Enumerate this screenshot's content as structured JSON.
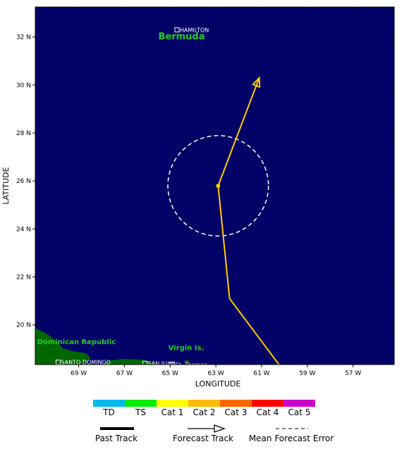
{
  "axes": {
    "xlabel": "LONGITUDE",
    "ylabel": "LATITUDE",
    "lon_range": [
      -70.9,
      -55.2
    ],
    "lat_range": [
      18.35,
      33.25
    ],
    "lon_ticks": [
      {
        "value": -69,
        "label": "69 W"
      },
      {
        "value": -67,
        "label": "67 W"
      },
      {
        "value": -65,
        "label": "65 W"
      },
      {
        "value": -63,
        "label": "63 W"
      },
      {
        "value": -61,
        "label": "61 W"
      },
      {
        "value": -59,
        "label": "59 W"
      },
      {
        "value": -57,
        "label": "57 W"
      }
    ],
    "lat_ticks": [
      {
        "value": 32,
        "label": "32 N"
      },
      {
        "value": 30,
        "label": "30 N"
      },
      {
        "value": 28,
        "label": "28 N"
      },
      {
        "value": 26,
        "label": "26 N"
      },
      {
        "value": 24,
        "label": "24 N"
      },
      {
        "value": 22,
        "label": "22 N"
      },
      {
        "value": 20,
        "label": "20 N"
      }
    ]
  },
  "colors": {
    "ocean": "#000066",
    "land": "#006600",
    "track": "#ffcc00",
    "error_circle": "#ffffff"
  },
  "places": [
    {
      "name": "HAMILTON",
      "lon": -64.7,
      "lat": 32.3
    },
    {
      "name": "SANTO DOMINGO",
      "lon": -69.9,
      "lat": 18.45
    },
    {
      "name": "SAN JUAN",
      "lon": -66.1,
      "lat": 18.4
    },
    {
      "name": "St. Thomas",
      "lon": -64.9,
      "lat": 18.35
    }
  ],
  "regions": [
    {
      "name": "Bermuda",
      "lon": -64.5,
      "lat": 31.9
    },
    {
      "name": "Dominican Republic",
      "lon": -69.1,
      "lat": 19.2
    },
    {
      "name": "Virgin Is.",
      "lon": -64.3,
      "lat": 18.95
    }
  ],
  "forecast_track": [
    {
      "lon": -60.2,
      "lat": 18.3
    },
    {
      "lon": -62.4,
      "lat": 21.1
    },
    {
      "lon": -62.9,
      "lat": 25.8
    },
    {
      "lon": -61.1,
      "lat": 30.3
    }
  ],
  "current_position": {
    "lon": -62.9,
    "lat": 25.8
  },
  "error_circle": {
    "lon": -62.9,
    "lat": 25.8,
    "radius_deg": 2.2
  },
  "legend": {
    "categories": [
      {
        "label": "TD",
        "color": "#00bbee"
      },
      {
        "label": "TS",
        "color": "#00ee00"
      },
      {
        "label": "Cat 1",
        "color": "#ffff00"
      },
      {
        "label": "Cat 2",
        "color": "#ffbb00"
      },
      {
        "label": "Cat 3",
        "color": "#ff6600"
      },
      {
        "label": "Cat 4",
        "color": "#ff0000"
      },
      {
        "label": "Cat 5",
        "color": "#cc00cc"
      }
    ],
    "past_track_label": "Past Track",
    "forecast_track_label": "Forecast Track",
    "error_label": "Mean Forecast Error"
  }
}
